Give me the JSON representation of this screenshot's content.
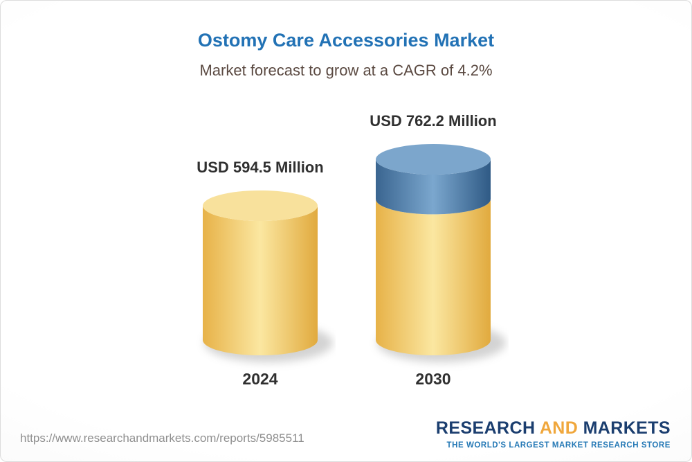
{
  "chart_data": {
    "type": "bar",
    "subtype": "3d-cylinder",
    "title": "Ostomy Care Accessories Market",
    "subtitle": "Market forecast to grow at a CAGR of 4.2%",
    "cagr_pct": 4.2,
    "unit": "USD Million",
    "categories": [
      "2024",
      "2030"
    ],
    "values": [
      594.5,
      762.2
    ],
    "value_labels": [
      "USD 594.5 Million",
      "USD 762.2 Million"
    ],
    "segments": [
      [
        {
          "value": 594.5,
          "color": "yellow"
        }
      ],
      [
        {
          "value": 594.5,
          "color": "yellow"
        },
        {
          "value": 167.7,
          "color": "blue"
        }
      ]
    ],
    "palette": {
      "yellow": {
        "edge1": "#e7b248",
        "mid": "#fbe7a1",
        "edge2": "#e1aa3e",
        "top": "#f8e19c"
      },
      "blue": {
        "edge1": "#3a6590",
        "mid": "#7ba7ce",
        "edge2": "#2f5a85",
        "top": "#7ca6cc"
      }
    },
    "layout_hints": {
      "grid": false,
      "legend": false,
      "axis_lines": false,
      "ylim": [
        0,
        800
      ]
    }
  },
  "colors": {
    "title_blue": "#2272b5",
    "subtitle_brown": "#5b4a42",
    "label_dark": "#2f2f2f",
    "url_gray": "#8f8f8f",
    "logo_navy": "#1b3e6f",
    "logo_gold": "#f0a73c",
    "tagline_blue": "#2478b5"
  },
  "footer": {
    "url": "https://www.researchandmarkets.com/reports/5985511",
    "logo": {
      "word1": "RESEARCH",
      "word2": "AND",
      "word3": "MARKETS",
      "tagline": "THE WORLD'S LARGEST MARKET RESEARCH STORE"
    }
  }
}
